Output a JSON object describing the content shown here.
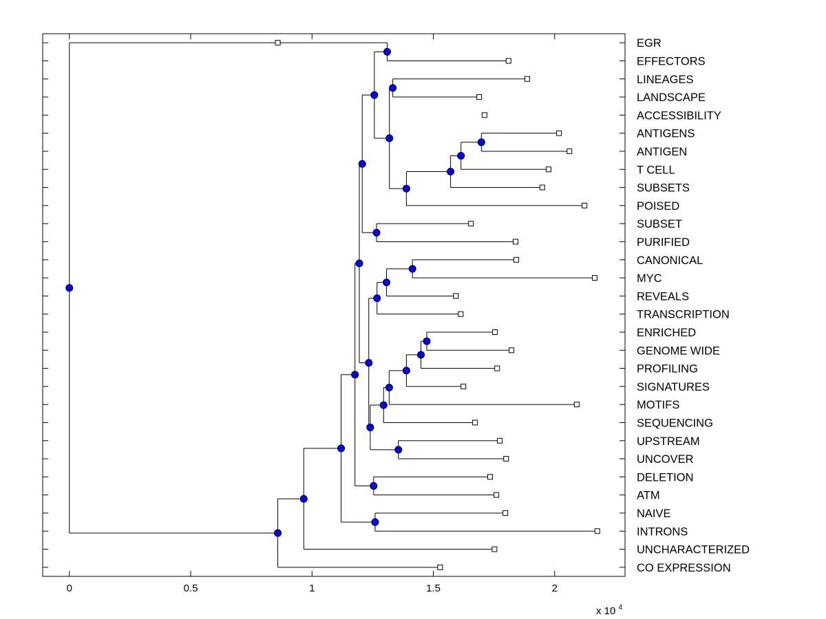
{
  "chart_data": {
    "type": "dendrogram",
    "title": "",
    "xlabel": "",
    "ylabel": "",
    "x_exponent_label": "x 10",
    "x_exponent_power": "4",
    "xlim": [
      -0.11,
      2.29
    ],
    "ylim": [
      0.5,
      30.5
    ],
    "x_ticks": [
      0,
      0.5,
      1,
      1.5,
      2
    ],
    "x_tick_labels": [
      "0",
      "0.5",
      "1",
      "1.5",
      "2"
    ],
    "leaves": [
      {
        "label": "EGR",
        "x": 0.859
      },
      {
        "label": "EFFECTORS",
        "x": 1.81
      },
      {
        "label": "LINEAGES",
        "x": 1.887
      },
      {
        "label": "LANDSCAPE",
        "x": 1.689
      },
      {
        "label": "ACCESSIBILITY",
        "x": 1.711
      },
      {
        "label": "ANTIGENS",
        "x": 2.018
      },
      {
        "label": "ANTIGEN",
        "x": 2.061
      },
      {
        "label": "T CELL",
        "x": 1.975
      },
      {
        "label": "SUBSETS",
        "x": 1.949
      },
      {
        "label": "POISED",
        "x": 2.123
      },
      {
        "label": "SUBSET",
        "x": 1.655
      },
      {
        "label": "PURIFIED",
        "x": 1.839
      },
      {
        "label": "CANONICAL",
        "x": 1.842
      },
      {
        "label": "MYC",
        "x": 2.165
      },
      {
        "label": "REVEALS",
        "x": 1.593
      },
      {
        "label": "TRANSCRIPTION",
        "x": 1.613
      },
      {
        "label": "ENRICHED",
        "x": 1.754
      },
      {
        "label": "GENOME WIDE",
        "x": 1.822
      },
      {
        "label": "PROFILING",
        "x": 1.763
      },
      {
        "label": "SIGNATURES",
        "x": 1.624
      },
      {
        "label": "MOTIFS",
        "x": 2.091
      },
      {
        "label": "SEQUENCING",
        "x": 1.672
      },
      {
        "label": "UPSTREAM",
        "x": 1.774
      },
      {
        "label": "UNCOVER",
        "x": 1.8
      },
      {
        "label": "DELETION",
        "x": 1.734
      },
      {
        "label": "ATM",
        "x": 1.76
      },
      {
        "label": "NAIVE",
        "x": 1.797
      },
      {
        "label": "INTRONS",
        "x": 2.176
      },
      {
        "label": "UNCHARACTERIZED",
        "x": 1.752
      },
      {
        "label": "CO EXPRESSION",
        "x": 1.528
      }
    ],
    "merges": [
      {
        "id": "n_eff_lin",
        "x": 1.31,
        "children": [
          "L0",
          "L1"
        ]
      },
      {
        "id": "n_land_acc",
        "x": 1.333,
        "children": [
          "L2",
          "L3"
        ]
      },
      {
        "id": "n_antigens",
        "x": 1.698,
        "children": [
          "L5",
          "L6"
        ]
      },
      {
        "id": "n_ant_tcell",
        "x": 1.614,
        "children": [
          "n_antigens",
          "L7"
        ]
      },
      {
        "id": "n_subsets",
        "x": 1.571,
        "children": [
          "n_ant_tcell",
          "L8"
        ]
      },
      {
        "id": "n_poised",
        "x": 1.389,
        "children": [
          "n_subsets",
          "L9"
        ]
      },
      {
        "id": "n_land_poised",
        "x": 1.319,
        "children": [
          "n_land_acc",
          "n_poised"
        ]
      },
      {
        "id": "n_top_a",
        "x": 1.257,
        "children": [
          "n_eff_lin",
          "n_land_poised"
        ]
      },
      {
        "id": "n_subset_pur",
        "x": 1.266,
        "children": [
          "L10",
          "L11"
        ]
      },
      {
        "id": "n_top_b",
        "x": 1.207,
        "children": [
          "n_top_a",
          "n_subset_pur"
        ]
      },
      {
        "id": "n_can_myc",
        "x": 1.414,
        "children": [
          "L12",
          "L13"
        ]
      },
      {
        "id": "n_reveals",
        "x": 1.307,
        "children": [
          "n_can_myc",
          "L14"
        ]
      },
      {
        "id": "n_transcr",
        "x": 1.268,
        "children": [
          "n_reveals",
          "L15"
        ]
      },
      {
        "id": "n_enr_gw",
        "x": 1.473,
        "children": [
          "L16",
          "L17"
        ]
      },
      {
        "id": "n_prof",
        "x": 1.449,
        "children": [
          "n_enr_gw",
          "L18"
        ]
      },
      {
        "id": "n_sig",
        "x": 1.389,
        "children": [
          "n_prof",
          "L19"
        ]
      },
      {
        "id": "n_motifs",
        "x": 1.318,
        "children": [
          "n_sig",
          "L20"
        ]
      },
      {
        "id": "n_seq",
        "x": 1.295,
        "children": [
          "n_motifs",
          "L21"
        ]
      },
      {
        "id": "n_up_unc",
        "x": 1.356,
        "children": [
          "L22",
          "L23"
        ]
      },
      {
        "id": "n_genome_block",
        "x": 1.24,
        "children": [
          "n_seq",
          "n_up_unc"
        ]
      },
      {
        "id": "n_mid",
        "x": 1.234,
        "children": [
          "n_transcr",
          "n_genome_block"
        ]
      },
      {
        "id": "n_upper",
        "x": 1.195,
        "children": [
          "n_top_b",
          "n_mid"
        ]
      },
      {
        "id": "n_del_atm",
        "x": 1.254,
        "children": [
          "L24",
          "L25"
        ]
      },
      {
        "id": "n_main",
        "x": 1.177,
        "children": [
          "n_upper",
          "n_del_atm"
        ]
      },
      {
        "id": "n_naive_int",
        "x": 1.26,
        "children": [
          "L26",
          "L27"
        ]
      },
      {
        "id": "n_main2",
        "x": 1.12,
        "children": [
          "n_main",
          "n_naive_int"
        ]
      },
      {
        "id": "n_unchar",
        "x": 0.966,
        "children": [
          "n_main2",
          "L28"
        ]
      },
      {
        "id": "n_coexp",
        "x": 0.859,
        "children": [
          "n_unchar",
          "L29"
        ]
      },
      {
        "id": "root",
        "x": 0,
        "children": [
          "L0_root_placeholder"
        ]
      }
    ],
    "root": {
      "x": 0,
      "children": [
        "L0",
        "n_coexp"
      ]
    }
  }
}
